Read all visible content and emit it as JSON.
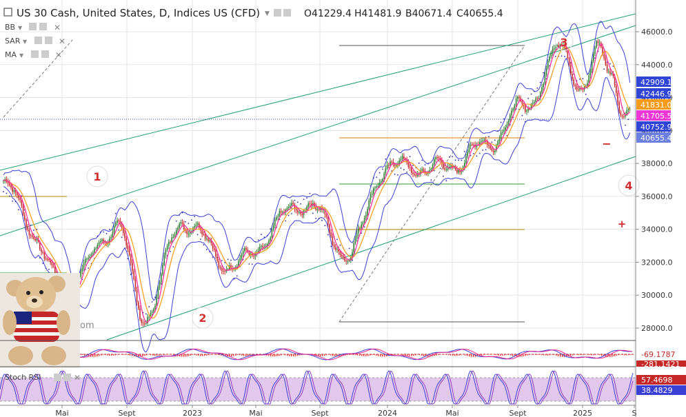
{
  "header": {
    "title": "US 30 Cash, United States, D, Indices US (CFD)",
    "ohlc": {
      "open": "O41229.4",
      "high": "H41481.9",
      "low": "B40671.4",
      "close": "C40655.4"
    },
    "indicators": [
      "BB",
      "SAR",
      "MA"
    ],
    "bottom_panels": [
      "Stoch RSI"
    ]
  },
  "colors": {
    "price_up": "#2e7d32",
    "price_down": "#c62828",
    "bollinger": "#3a3fd6",
    "sar": "#2a2aa8",
    "ma_fast": "#ff2d9a",
    "ma_slow": "#f5a020",
    "channel": "#1e9e78",
    "fib_grey": "#555555",
    "fib_orange": "#e07b00",
    "fib_green": "#2e9e2e",
    "fib_olive": "#b08a00",
    "wave_label": "#d32f2f",
    "grid": "#e5e5e5",
    "stoch_fill": "#e2c8ec",
    "stoch_line": "#8e3cbf"
  },
  "chart_data": {
    "type": "line",
    "title": "US 30 Cash, United States, D, Indices US (CFD)",
    "xlabel": "",
    "ylabel": "",
    "x_ticks": [
      "Mai",
      "Sept",
      "2023",
      "Mai",
      "Sept",
      "2024",
      "Mai",
      "Sept",
      "2025",
      "S"
    ],
    "ylim": [
      26800,
      46900
    ],
    "y_ticks": [
      "46000.0",
      "44000.0",
      "42000.0",
      "40000.0",
      "38000.0",
      "36000.0",
      "34000.0",
      "32000.0",
      "30000.0",
      "28000.0"
    ],
    "price_key_points": [
      {
        "x": "2022-03",
        "y": 36500
      },
      {
        "x": "2022-06",
        "y": 30500
      },
      {
        "x": "2022-08",
        "y": 34200
      },
      {
        "x": "2022-09",
        "y": 28700
      },
      {
        "x": "2022-11",
        "y": 34500
      },
      {
        "x": "2023-03",
        "y": 31800
      },
      {
        "x": "2023-07",
        "y": 35600
      },
      {
        "x": "2023-10",
        "y": 32500
      },
      {
        "x": "2024-01",
        "y": 37800
      },
      {
        "x": "2024-04",
        "y": 37700
      },
      {
        "x": "2024-06",
        "y": 39000
      },
      {
        "x": "2024-09",
        "y": 41400
      },
      {
        "x": "2024-11",
        "y": 45000
      },
      {
        "x": "2024-12",
        "y": 42500
      },
      {
        "x": "2025-01",
        "y": 44900
      },
      {
        "x": "2025-02",
        "y": 43800
      },
      {
        "x": "2025-03",
        "y": 41000
      },
      {
        "x": "2025-03-end",
        "y": 40700
      }
    ],
    "price_scale_labels": [
      {
        "value": "42909.1",
        "color": "#2f45d8",
        "text_color": "#ffffff"
      },
      {
        "value": "42446.9",
        "color": "#2f45d8",
        "text_color": "#ffffff"
      },
      {
        "value": "41831.0",
        "color": "#f59a1b",
        "text_color": "#ffffff"
      },
      {
        "value": "41705.5",
        "color": "#f036d6",
        "text_color": "#ffffff"
      },
      {
        "value": "40752.9",
        "color": "#2f45d8",
        "text_color": "#ffffff"
      },
      {
        "value": "40655.4",
        "color": "#6b7fe0",
        "text_color": "#ffffff"
      }
    ],
    "wave_labels": [
      "1",
      "2",
      "3",
      "4"
    ],
    "symbols": [
      "−",
      "+"
    ],
    "macd_panel_labels": [
      "-69.1787",
      "-281.1421"
    ],
    "stoch_panel_labels": [
      "57.4698",
      "38.4829"
    ],
    "watermark_fragment": "om"
  }
}
